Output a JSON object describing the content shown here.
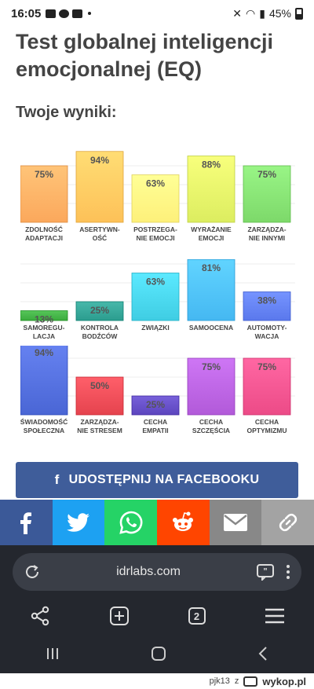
{
  "status_bar": {
    "time": "16:05",
    "battery": "45%"
  },
  "page": {
    "title": "Test globalnej inteligencji emocjonalnej (EQ)",
    "results_heading": "Twoje wyniki:"
  },
  "chart_data": {
    "type": "bar",
    "ylim": [
      0,
      100
    ],
    "categories": [
      [
        "ZDOLNOŚĆ",
        "ADAPTACJI"
      ],
      [
        "ASERTYWN-",
        "OŚĆ"
      ],
      [
        "POSTRZEGA-",
        "NIE EMOCJI"
      ],
      [
        "WYRAŻANIE",
        "EMOCJI"
      ],
      [
        "ZARZĄDZA-",
        "NIE INNYMI"
      ],
      [
        "SAMOREGU-",
        "LACJA"
      ],
      [
        "KONTROLA",
        "BODŹCÓW"
      ],
      [
        "ZWIĄZKI"
      ],
      [
        "SAMOOCENA"
      ],
      [
        "AUTOMOTY-",
        "WACJA"
      ],
      [
        "ŚWIADOMOŚĆ",
        "SPOŁECZNA"
      ],
      [
        "ZARZĄDZA-",
        "NIE STRESEM"
      ],
      [
        "CECHA",
        "EMPATII"
      ],
      [
        "CECHA",
        "SZCZĘŚCIA"
      ],
      [
        "CECHA",
        "OPTYMIZMU"
      ]
    ],
    "values": [
      75,
      94,
      63,
      88,
      75,
      13,
      25,
      63,
      81,
      38,
      94,
      50,
      25,
      75,
      75
    ],
    "value_labels": [
      "75%",
      "94%",
      "63%",
      "88%",
      "75%",
      "13%",
      "25%",
      "63%",
      "81%",
      "38%",
      "94%",
      "50%",
      "25%",
      "75%",
      "75%"
    ],
    "colors": [
      "#fba85c",
      "#fdc158",
      "#fdf07a",
      "#dced60",
      "#7dd96a",
      "#3aaa3d",
      "#2b9c8e",
      "#3fcde3",
      "#45b8f2",
      "#5a78ec",
      "#4a66d5",
      "#e5434e",
      "#5c45be",
      "#b25ad9",
      "#ec4b87"
    ]
  },
  "share": {
    "facebook_button_label": "UDOSTĘPNIJ NA FACEBOOKU",
    "buttons": [
      {
        "name": "facebook",
        "color": "#3b5998"
      },
      {
        "name": "twitter",
        "color": "#1da1f2"
      },
      {
        "name": "whatsapp",
        "color": "#25d366"
      },
      {
        "name": "reddit",
        "color": "#ff4500"
      },
      {
        "name": "email",
        "color": "#888888"
      },
      {
        "name": "link",
        "color": "#a3a3a3"
      }
    ]
  },
  "browser": {
    "url": "idrlabs.com",
    "tab_count": "2"
  },
  "footer": {
    "user": "pjk13",
    "connector": "z",
    "brand": "wykop.pl"
  }
}
